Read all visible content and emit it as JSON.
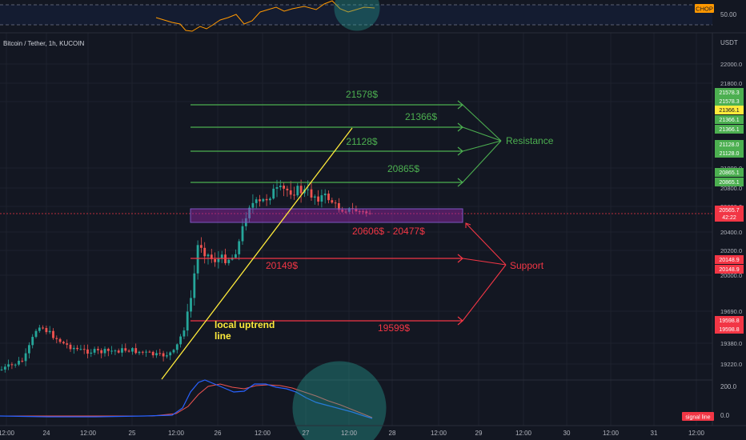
{
  "header": {
    "symbol": "Bitcoin / Tether, 1h, KUCOIN",
    "currency": "USDT"
  },
  "chop_panel": {
    "badge": "CHOP",
    "level_label": "50.00"
  },
  "chart_data": {
    "type": "candlestick",
    "symbol": "Bitcoin / Tether, 1h, KUCOIN",
    "currency": "USDT",
    "x_tick_labels": [
      "12:00",
      "24",
      "12:00",
      "25",
      "12:00",
      "26",
      "12:00",
      "27",
      "12:00",
      "28",
      "12:00",
      "29",
      "12:00",
      "30",
      "12:00",
      "31",
      "12:00"
    ],
    "y_tick_labels": [
      "22000.0",
      "21800.0",
      "21600.0",
      "21000.0",
      "20800.0",
      "20600.0",
      "20400.0",
      "20200.0",
      "20000.0",
      "19690.0",
      "19380.0",
      "19220.0"
    ],
    "price_tags": [
      {
        "value": "21578.3",
        "color": "#4caf50"
      },
      {
        "value": "21578.3",
        "color": "#4caf50"
      },
      {
        "value": "21366.1",
        "color": "#ffeb3b"
      },
      {
        "value": "21366.1",
        "color": "#4caf50"
      },
      {
        "value": "21366.1",
        "color": "#4caf50"
      },
      {
        "value": "21128.0",
        "color": "#4caf50"
      },
      {
        "value": "21128.0",
        "color": "#4caf50"
      },
      {
        "value": "20865.1",
        "color": "#4caf50"
      },
      {
        "value": "20865.1",
        "color": "#4caf50"
      },
      {
        "value": "20565.7",
        "color": "#f23645",
        "sub": "42:22"
      },
      {
        "value": "20148.9",
        "color": "#f23645"
      },
      {
        "value": "20148.9",
        "color": "#f23645"
      },
      {
        "value": "19598.8",
        "color": "#f23645"
      },
      {
        "value": "19598.8",
        "color": "#f23645"
      }
    ],
    "resistance_levels": [
      {
        "label": "21578$",
        "value": 21578
      },
      {
        "label": "21366$",
        "value": 21366
      },
      {
        "label": "21128$",
        "value": 21128
      },
      {
        "label": "20865$",
        "value": 20865
      }
    ],
    "support_levels": [
      {
        "label": "20149$",
        "value": 20149
      },
      {
        "label": "19599$",
        "value": 19599
      }
    ],
    "support_zone": {
      "label": "20606$ - 20477$",
      "high": 20606,
      "low": 20477
    },
    "annotations": {
      "resistance": "Resistance",
      "support": "Support",
      "trendline_line1": "local uptrend",
      "trendline_line2": "line"
    },
    "oscillator": {
      "levels": [
        "200.0",
        "0.0"
      ],
      "legend_badge": "signal line"
    },
    "colors": {
      "background": "#131722",
      "up": "#26a69a",
      "down": "#ef5350",
      "resistance": "#4caf50",
      "support": "#f23645",
      "trendline": "#ffeb3b",
      "chop": "#ff9800",
      "signal_line": "#f23645",
      "main_line": "#2962ff"
    }
  }
}
